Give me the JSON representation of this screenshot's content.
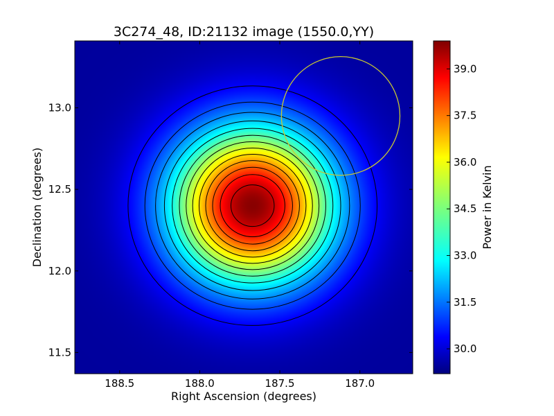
{
  "chart_data": {
    "type": "heatmap",
    "title": "3C274_48, ID:21132 image (1550.0,YY)",
    "xlabel": "Right Ascension (degrees)",
    "ylabel": "Declination (degrees)",
    "colorbar_label": "Power in Kelvin",
    "colormap": "jet",
    "xlim": [
      188.78,
      186.67
    ],
    "ylim": [
      11.37,
      13.41
    ],
    "x_ticks": [
      188.5,
      188.0,
      187.5,
      187.0
    ],
    "x_tick_labels": [
      "188.5",
      "188.0",
      "187.5",
      "187.0"
    ],
    "y_ticks": [
      11.5,
      12.0,
      12.5,
      13.0
    ],
    "y_tick_labels": [
      "11.5",
      "12.0",
      "12.5",
      "13.0"
    ],
    "colorbar_range": [
      29.2,
      39.9
    ],
    "colorbar_ticks": [
      30.0,
      31.5,
      33.0,
      34.5,
      36.0,
      37.5,
      39.0
    ],
    "colorbar_tick_labels": [
      "30.0",
      "31.5",
      "33.0",
      "34.5",
      "36.0",
      "37.5",
      "39.0"
    ],
    "peak": {
      "ra": 187.67,
      "dec": 12.4,
      "value": 39.8
    },
    "background_value": 29.5,
    "beam_sigma_deg": {
      "ra": 0.36,
      "dec": 0.34
    },
    "contour_levels": [
      30.5,
      31.3,
      32.0,
      32.7,
      33.4,
      34.1,
      34.8,
      35.5,
      36.2,
      36.9,
      37.6,
      38.3,
      39.1
    ],
    "circle": {
      "ra": 187.12,
      "dec": 12.95,
      "radius_deg": 0.37,
      "color": "#c8c832"
    }
  }
}
